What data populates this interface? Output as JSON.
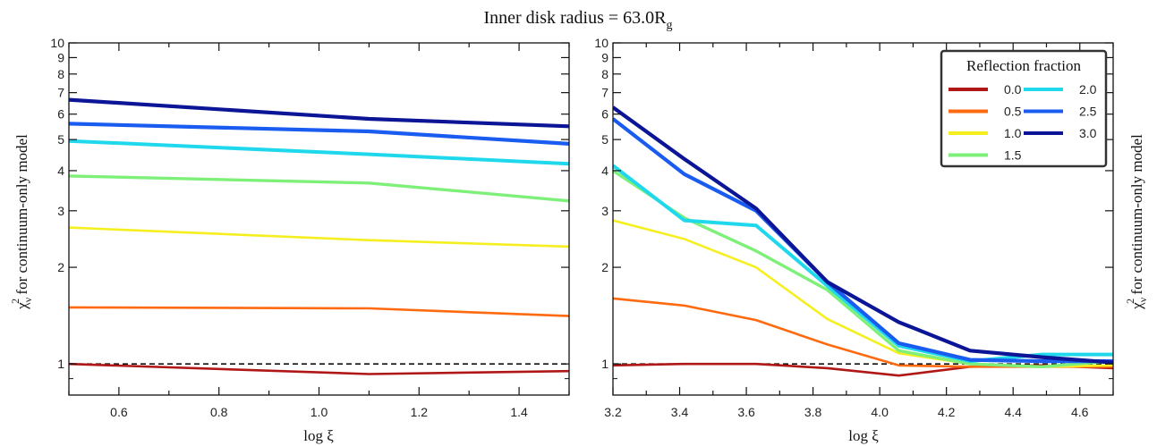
{
  "figure": {
    "title_prefix": "Inner disk radius = 63.0R",
    "title_subscript": "g",
    "y_label_text": " for continuum-only model",
    "y_label_symbol": "χ",
    "y_label_sup": "2",
    "y_label_sub": "ν",
    "x_label": "log ξ"
  },
  "legend": {
    "title": "Reflection fraction"
  },
  "colors": {
    "0.0": "#b01818",
    "0.5": "#ff6a10",
    "1.0": "#f5ef20",
    "1.5": "#7ef07a",
    "2.0": "#20d8ec",
    "2.5": "#1a5cf0",
    "3.0": "#0c1596"
  },
  "chart_data": [
    {
      "type": "line",
      "xlabel": "log ξ",
      "xlim": [
        0.5,
        1.5
      ],
      "ylim": [
        0.8,
        10
      ],
      "yscale": "log",
      "xticks": [
        "0.6",
        "0.8",
        "1.0",
        "1.2",
        "1.4"
      ],
      "xtick_values": [
        0.6,
        0.8,
        1.0,
        1.2,
        1.4
      ],
      "yticks": [
        "1",
        "2",
        "3",
        "4",
        "5",
        "6",
        "7",
        "8",
        "9",
        "10"
      ],
      "ytick_values": [
        1,
        2,
        3,
        4,
        5,
        6,
        7,
        8,
        9,
        10
      ],
      "reference_line": 1,
      "x": [
        0.5,
        1.1,
        1.5
      ],
      "series": [
        {
          "name": "0.0",
          "values": [
            1.0,
            0.93,
            0.95
          ]
        },
        {
          "name": "0.5",
          "values": [
            1.5,
            1.49,
            1.41
          ]
        },
        {
          "name": "1.0",
          "values": [
            2.66,
            2.43,
            2.32
          ]
        },
        {
          "name": "1.5",
          "values": [
            3.85,
            3.66,
            3.22
          ]
        },
        {
          "name": "2.0",
          "values": [
            4.95,
            4.5,
            4.2
          ]
        },
        {
          "name": "2.5",
          "values": [
            5.6,
            5.3,
            4.85
          ]
        },
        {
          "name": "3.0",
          "values": [
            6.65,
            5.8,
            5.5
          ]
        }
      ]
    },
    {
      "type": "line",
      "xlabel": "log ξ",
      "xlim": [
        3.2,
        4.7
      ],
      "ylim": [
        0.8,
        10
      ],
      "yscale": "log",
      "xticks": [
        "3.2",
        "3.4",
        "3.6",
        "3.8",
        "4.0",
        "4.2",
        "4.4",
        "4.6"
      ],
      "xtick_values": [
        3.2,
        3.4,
        3.6,
        3.8,
        4.0,
        4.2,
        4.4,
        4.6
      ],
      "yticks": [
        "1",
        "2",
        "3",
        "4",
        "5",
        "6",
        "7",
        "8",
        "9",
        "10"
      ],
      "ytick_values": [
        1,
        2,
        3,
        4,
        5,
        6,
        7,
        8,
        9,
        10
      ],
      "reference_line": 1,
      "legend_position": "top-right",
      "x": [
        3.2,
        3.414,
        3.629,
        3.843,
        4.057,
        4.271,
        4.486,
        4.7
      ],
      "series": [
        {
          "name": "0.0",
          "values": [
            0.99,
            1.0,
            1.0,
            0.97,
            0.92,
            0.98,
            0.99,
            0.97
          ]
        },
        {
          "name": "0.5",
          "values": [
            1.6,
            1.52,
            1.37,
            1.15,
            0.99,
            0.98,
            0.98,
            0.98
          ]
        },
        {
          "name": "1.0",
          "values": [
            2.8,
            2.45,
            2.0,
            1.38,
            1.08,
            1.0,
            0.98,
            0.99
          ]
        },
        {
          "name": "1.5",
          "values": [
            4.0,
            2.85,
            2.25,
            1.7,
            1.1,
            1.0,
            0.98,
            1.02
          ]
        },
        {
          "name": "2.0",
          "values": [
            4.15,
            2.8,
            2.7,
            1.75,
            1.14,
            1.02,
            1.07,
            1.07
          ]
        },
        {
          "name": "2.5",
          "values": [
            5.8,
            3.9,
            3.0,
            1.8,
            1.16,
            1.03,
            1.02,
            1.02
          ]
        },
        {
          "name": "3.0",
          "values": [
            6.3,
            4.35,
            3.05,
            1.8,
            1.35,
            1.1,
            1.05,
            1.01
          ]
        }
      ]
    }
  ]
}
